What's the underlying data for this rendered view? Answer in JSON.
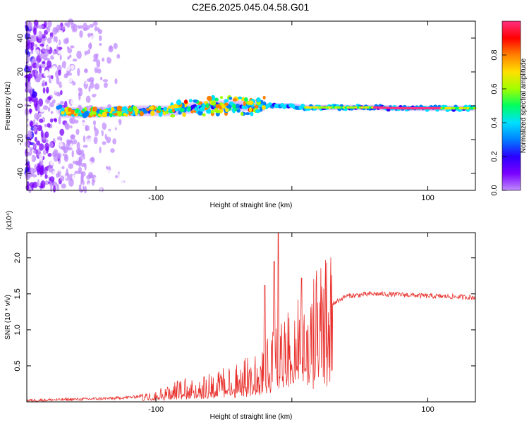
{
  "title": "C2E6.2025.045.04.58.G01",
  "chart_data": [
    {
      "type": "heatmap",
      "xlabel": "Height of straight line (km)",
      "ylabel": "Frequency (Hz)",
      "xlim": [
        -195,
        135
      ],
      "ylim": [
        -50,
        50
      ],
      "xticks": [
        -100,
        0,
        100
      ],
      "xtick_labels": [
        "-100",
        "",
        "100"
      ],
      "yticks": [
        -40,
        -20,
        0,
        20,
        40
      ],
      "ytick_labels": [
        "-40",
        "-20",
        "0",
        "20",
        "40"
      ],
      "colorbar": {
        "label": "Normalized spectral amplitude",
        "range": [
          0.0,
          1.0
        ],
        "ticks": [
          0.0,
          0.2,
          0.4,
          0.6,
          0.8
        ],
        "tick_labels": [
          "0.0",
          "0.2",
          "0.4",
          "0.6",
          "0.8"
        ],
        "colors": [
          "#ffffff",
          "#c08cff",
          "#7a00ff",
          "#2a00ff",
          "#0080ff",
          "#00e0ff",
          "#00ff60",
          "#a0ff00",
          "#ffe000",
          "#ff8000",
          "#ff0000",
          "#ff3080"
        ]
      },
      "ridge": {
        "x": [
          -170,
          -150,
          -130,
          -110,
          -90,
          -80,
          -70,
          -60,
          -50,
          -40,
          -30,
          -20,
          -10,
          0,
          10,
          20,
          40,
          60,
          80,
          100,
          120,
          135
        ],
        "y": [
          -4,
          -4,
          -3.5,
          -3,
          -3,
          -2,
          -1,
          0,
          0,
          0,
          0,
          0,
          0,
          0,
          -1,
          -1,
          -1,
          -1,
          -1.5,
          -1.5,
          -1.5,
          -1.5
        ]
      },
      "grid": false
    },
    {
      "type": "line",
      "xlabel": "Height of straight line (km)",
      "ylabel": "SNR (10 * v/v)",
      "y_multiplier": "(x10⁴)",
      "xlim": [
        -195,
        135
      ],
      "ylim": [
        0,
        2.35
      ],
      "xticks": [
        -100,
        0,
        100
      ],
      "xtick_labels": [
        "-100",
        "",
        "100"
      ],
      "yticks": [
        0.5,
        1.0,
        1.5,
        2.0
      ],
      "ytick_labels": [
        "0.5",
        "1.0",
        "1.5",
        "2.0"
      ],
      "line_color": "#e8302c",
      "envelope_x": [
        -195,
        -170,
        -150,
        -130,
        -115,
        -100,
        -90,
        -80,
        -70,
        -60,
        -50,
        -40,
        -30,
        -20,
        -10,
        0,
        10,
        20,
        30,
        40,
        60,
        80,
        100,
        120,
        135
      ],
      "envelope_y": [
        0.02,
        0.03,
        0.04,
        0.05,
        0.07,
        0.12,
        0.17,
        0.21,
        0.24,
        0.28,
        0.31,
        0.36,
        0.42,
        0.55,
        0.72,
        0.9,
        1.05,
        1.22,
        1.36,
        1.47,
        1.5,
        1.49,
        1.47,
        1.46,
        1.45
      ],
      "spikes": [
        {
          "x": -20,
          "y": 1.62
        },
        {
          "x": -13,
          "y": 1.95
        },
        {
          "x": -10,
          "y": 2.35
        },
        {
          "x": 7,
          "y": 1.72
        },
        {
          "x": 10,
          "y": 0.46
        }
      ],
      "grid": false
    }
  ]
}
